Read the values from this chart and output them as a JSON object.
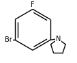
{
  "background_color": "#ffffff",
  "bond_color": "#000000",
  "atom_color": "#000000",
  "label_F": "F",
  "label_Br": "Br",
  "label_N": "N",
  "fig_width": 1.14,
  "fig_height": 0.92,
  "dpi": 100
}
